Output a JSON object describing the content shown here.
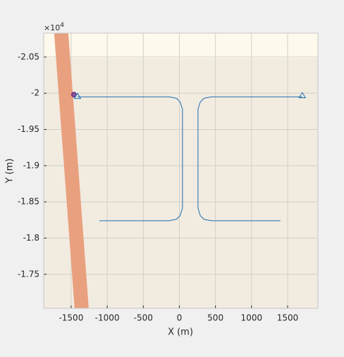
{
  "chart_data": {
    "type": "line",
    "xlabel": "X (m)",
    "ylabel": "Y (m)",
    "y_multiplier_base": "×10",
    "y_multiplier_exp": "4",
    "xlim": [
      -1880,
      1920
    ],
    "ylim": [
      -20830,
      -17030
    ],
    "y_reversed": true,
    "grid": true,
    "xticks": [
      -1500,
      -1000,
      -500,
      0,
      500,
      1000,
      1500
    ],
    "yticks": [
      {
        "value": -20500,
        "label": "-2.05"
      },
      {
        "value": -20000,
        "label": "-2"
      },
      {
        "value": -19500,
        "label": "-1.95"
      },
      {
        "value": -19000,
        "label": "-1.9"
      },
      {
        "value": -18500,
        "label": "-1.85"
      },
      {
        "value": -18000,
        "label": "-1.8"
      },
      {
        "value": -17500,
        "label": "-1.75"
      }
    ],
    "plot_color": "#f1ebe0",
    "regions": [
      {
        "color": "#fdf9ec",
        "y": [
          -20830,
          -20481
        ]
      }
    ],
    "series": [
      {
        "color": "#e9a07e",
        "width": 20,
        "x": [
          -1637,
          -1354
        ],
        "y": [
          -20830,
          -17030
        ]
      },
      {
        "color": "#1f6fb0",
        "width": 1,
        "x": [
          -1412,
          -143,
          -40,
          10,
          43,
          43,
          10,
          -40,
          -143,
          -1109,
          null,
          1703,
          443,
          340,
          290,
          258,
          258,
          290,
          340,
          443,
          1400
        ],
        "y": [
          -19951,
          -19951,
          -19930,
          -19880,
          -19780,
          -18414,
          -18310,
          -18260,
          -18239,
          -18239,
          null,
          -19951,
          -19951,
          -19930,
          -19880,
          -19780,
          -18414,
          -18310,
          -18260,
          -18239,
          -18239
        ]
      }
    ],
    "markers": [
      {
        "shape": "circle",
        "color": "#6a2d86",
        "x": -1461,
        "y": -19981
      },
      {
        "shape": "triangle",
        "color": "#1f6fb0",
        "x": -1412,
        "y": -19961
      },
      {
        "shape": "triangle",
        "color": "#1f6fb0",
        "x": 1703,
        "y": -19971
      }
    ]
  }
}
